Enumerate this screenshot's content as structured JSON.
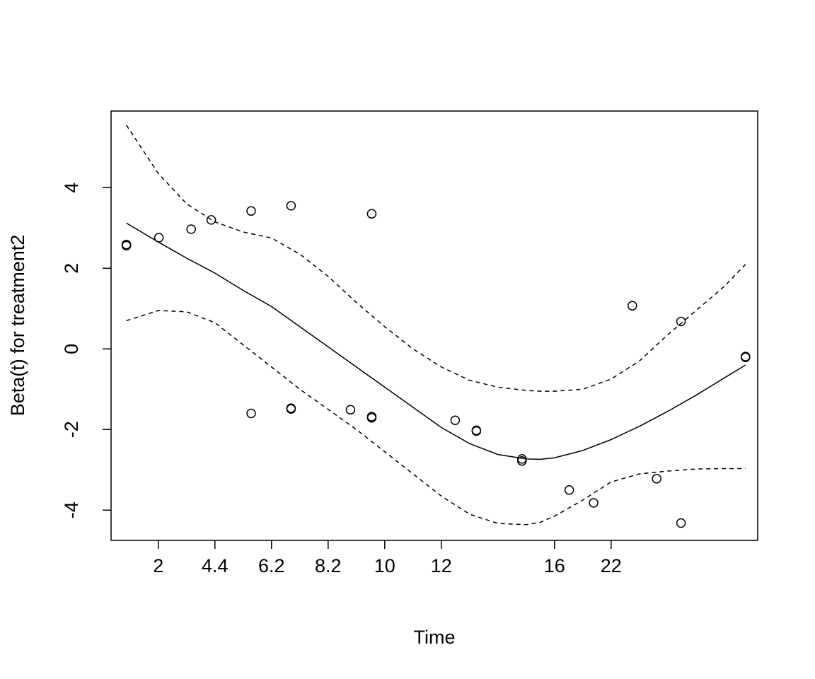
{
  "chart_data": {
    "type": "scatter",
    "title": "",
    "xlabel": "Time",
    "ylabel": "Beta(t) for treatment2",
    "x_ticks": [
      "2",
      "4.4",
      "6.2",
      "8.2",
      "10",
      "12",
      "16",
      "22"
    ],
    "x_tick_pos": [
      2,
      4,
      6,
      8,
      10,
      12,
      16,
      18
    ],
    "x_range": [
      0.33,
      23.18
    ],
    "y_ticks": [
      -4,
      -2,
      0,
      2,
      4
    ],
    "y_range": [
      -4.75,
      5.9
    ],
    "grid": false,
    "legend": "none",
    "points": [
      [
        0.87,
        2.59
      ],
      [
        0.87,
        2.56
      ],
      [
        2.02,
        2.76
      ],
      [
        3.16,
        2.97
      ],
      [
        3.87,
        3.2
      ],
      [
        5.28,
        3.42
      ],
      [
        5.28,
        -1.6
      ],
      [
        6.69,
        3.55
      ],
      [
        6.69,
        -1.47
      ],
      [
        6.69,
        -1.49
      ],
      [
        8.79,
        -1.51
      ],
      [
        9.54,
        3.35
      ],
      [
        9.54,
        -1.68
      ],
      [
        9.54,
        -1.71
      ],
      [
        12.49,
        -1.77
      ],
      [
        13.24,
        -2.02
      ],
      [
        13.24,
        -2.04
      ],
      [
        14.85,
        -2.73
      ],
      [
        14.85,
        -2.78
      ],
      [
        16.52,
        -3.5
      ],
      [
        17.38,
        -3.82
      ],
      [
        18.75,
        1.07
      ],
      [
        19.61,
        -3.22
      ],
      [
        20.47,
        0.68
      ],
      [
        20.47,
        -4.32
      ],
      [
        22.75,
        -0.19
      ],
      [
        22.75,
        -0.21
      ]
    ],
    "fit": {
      "x": [
        0.87,
        2,
        3,
        4,
        5,
        6,
        7,
        8,
        9,
        10,
        11,
        12,
        13,
        14,
        15,
        15.5,
        16,
        17,
        18,
        19,
        20,
        21,
        22,
        22.75
      ],
      "y": [
        3.12,
        2.65,
        2.25,
        1.88,
        1.45,
        1.05,
        0.55,
        0.05,
        -0.45,
        -0.95,
        -1.45,
        -1.95,
        -2.35,
        -2.62,
        -2.73,
        -2.74,
        -2.7,
        -2.52,
        -2.25,
        -1.92,
        -1.55,
        -1.15,
        -0.72,
        -0.4
      ]
    },
    "upper": {
      "x": [
        0.87,
        2,
        3,
        4,
        5,
        6,
        7,
        8,
        9,
        10,
        11,
        12,
        13,
        14,
        15,
        15.5,
        16,
        17,
        18,
        19,
        20,
        21,
        22,
        22.75
      ],
      "y": [
        5.55,
        4.35,
        3.6,
        3.15,
        2.9,
        2.75,
        2.35,
        1.8,
        1.15,
        0.55,
        0.0,
        -0.45,
        -0.78,
        -0.95,
        -1.03,
        -1.05,
        -1.05,
        -1.0,
        -0.75,
        -0.3,
        0.35,
        0.95,
        1.55,
        2.1
      ]
    },
    "lower": {
      "x": [
        0.87,
        2,
        3,
        4,
        5,
        6,
        7,
        8,
        9,
        10,
        11,
        12,
        13,
        14,
        15,
        15.5,
        16,
        17,
        18,
        19,
        20,
        21,
        22,
        22.75
      ],
      "y": [
        0.7,
        0.95,
        0.92,
        0.65,
        0.1,
        -0.45,
        -1.0,
        -1.5,
        -2.0,
        -2.55,
        -3.1,
        -3.65,
        -4.1,
        -4.33,
        -4.36,
        -4.3,
        -4.15,
        -3.75,
        -3.3,
        -3.1,
        -3.03,
        -2.98,
        -2.97,
        -2.97
      ]
    }
  }
}
